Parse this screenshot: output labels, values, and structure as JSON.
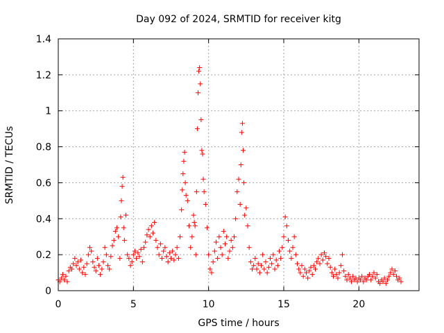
{
  "chart_data": {
    "type": "scatter",
    "title": "Day 092 of 2024, SRMTID for receiver kitg",
    "xlabel": "GPS time / hours",
    "ylabel": "SRMTID / TECUs",
    "xlim": [
      0,
      24
    ],
    "ylim": [
      0,
      1.4
    ],
    "x_ticks": [
      0,
      5,
      10,
      15,
      20
    ],
    "y_ticks": [
      0,
      0.2,
      0.4,
      0.6,
      0.8,
      1,
      1.2,
      1.4
    ],
    "y_tick_labels": [
      "0",
      "0.2",
      "0.4",
      "0.6",
      "0.8",
      "1",
      "1.2",
      "1.4"
    ],
    "grid": true,
    "marker": "+",
    "color": "#ff0000",
    "series": [
      {
        "name": "SRMTID",
        "points": [
          [
            0.0,
            0.06
          ],
          [
            0.1,
            0.05
          ],
          [
            0.2,
            0.07
          ],
          [
            0.3,
            0.09
          ],
          [
            0.4,
            0.06
          ],
          [
            0.5,
            0.08
          ],
          [
            0.6,
            0.05
          ],
          [
            0.7,
            0.11
          ],
          [
            0.8,
            0.13
          ],
          [
            0.9,
            0.12
          ],
          [
            1.0,
            0.15
          ],
          [
            1.1,
            0.18
          ],
          [
            1.2,
            0.14
          ],
          [
            1.3,
            0.16
          ],
          [
            1.4,
            0.12
          ],
          [
            1.5,
            0.17
          ],
          [
            1.6,
            0.1
          ],
          [
            1.7,
            0.13
          ],
          [
            1.8,
            0.09
          ],
          [
            1.9,
            0.15
          ],
          [
            2.0,
            0.2
          ],
          [
            2.1,
            0.24
          ],
          [
            2.2,
            0.22
          ],
          [
            2.3,
            0.16
          ],
          [
            2.4,
            0.13
          ],
          [
            2.5,
            0.11
          ],
          [
            2.6,
            0.18
          ],
          [
            2.7,
            0.14
          ],
          [
            2.8,
            0.09
          ],
          [
            2.9,
            0.12
          ],
          [
            3.0,
            0.16
          ],
          [
            3.1,
            0.24
          ],
          [
            3.2,
            0.2
          ],
          [
            3.3,
            0.14
          ],
          [
            3.4,
            0.12
          ],
          [
            3.5,
            0.19
          ],
          [
            3.6,
            0.25
          ],
          [
            3.7,
            0.28
          ],
          [
            3.8,
            0.33
          ],
          [
            3.9,
            0.35
          ],
          [
            4.0,
            0.3
          ],
          [
            4.1,
            0.18
          ],
          [
            4.15,
            0.41
          ],
          [
            4.2,
            0.5
          ],
          [
            4.25,
            0.58
          ],
          [
            4.3,
            0.63
          ],
          [
            4.35,
            0.35
          ],
          [
            4.4,
            0.28
          ],
          [
            4.5,
            0.42
          ],
          [
            4.6,
            0.2
          ],
          [
            4.7,
            0.18
          ],
          [
            4.8,
            0.14
          ],
          [
            4.9,
            0.16
          ],
          [
            5.0,
            0.2
          ],
          [
            5.1,
            0.22
          ],
          [
            5.2,
            0.18
          ],
          [
            5.3,
            0.21
          ],
          [
            5.4,
            0.19
          ],
          [
            5.5,
            0.23
          ],
          [
            5.6,
            0.16
          ],
          [
            5.7,
            0.24
          ],
          [
            5.8,
            0.27
          ],
          [
            5.9,
            0.31
          ],
          [
            6.0,
            0.34
          ],
          [
            6.1,
            0.3
          ],
          [
            6.2,
            0.36
          ],
          [
            6.3,
            0.32
          ],
          [
            6.4,
            0.38
          ],
          [
            6.5,
            0.28
          ],
          [
            6.6,
            0.24
          ],
          [
            6.7,
            0.2
          ],
          [
            6.8,
            0.26
          ],
          [
            6.9,
            0.18
          ],
          [
            7.0,
            0.22
          ],
          [
            7.1,
            0.24
          ],
          [
            7.2,
            0.19
          ],
          [
            7.3,
            0.16
          ],
          [
            7.4,
            0.21
          ],
          [
            7.5,
            0.18
          ],
          [
            7.6,
            0.22
          ],
          [
            7.7,
            0.17
          ],
          [
            7.8,
            0.2
          ],
          [
            7.9,
            0.24
          ],
          [
            8.0,
            0.18
          ],
          [
            8.1,
            0.3
          ],
          [
            8.2,
            0.45
          ],
          [
            8.25,
            0.56
          ],
          [
            8.3,
            0.65
          ],
          [
            8.35,
            0.72
          ],
          [
            8.4,
            0.77
          ],
          [
            8.45,
            0.6
          ],
          [
            8.5,
            0.53
          ],
          [
            8.6,
            0.5
          ],
          [
            8.7,
            0.36
          ],
          [
            8.8,
            0.24
          ],
          [
            8.9,
            0.3
          ],
          [
            9.0,
            0.42
          ],
          [
            9.05,
            0.38
          ],
          [
            9.1,
            0.36
          ],
          [
            9.15,
            0.2
          ],
          [
            9.2,
            0.55
          ],
          [
            9.25,
            0.9
          ],
          [
            9.3,
            1.1
          ],
          [
            9.35,
            1.22
          ],
          [
            9.4,
            1.24
          ],
          [
            9.45,
            1.15
          ],
          [
            9.5,
            0.95
          ],
          [
            9.55,
            0.78
          ],
          [
            9.6,
            0.76
          ],
          [
            9.65,
            0.62
          ],
          [
            9.7,
            0.55
          ],
          [
            9.8,
            0.48
          ],
          [
            9.9,
            0.35
          ],
          [
            10.0,
            0.2
          ],
          [
            10.1,
            0.12
          ],
          [
            10.2,
            0.1
          ],
          [
            10.3,
            0.16
          ],
          [
            10.4,
            0.22
          ],
          [
            10.5,
            0.27
          ],
          [
            10.6,
            0.18
          ],
          [
            10.7,
            0.3
          ],
          [
            10.8,
            0.24
          ],
          [
            10.9,
            0.2
          ],
          [
            11.0,
            0.33
          ],
          [
            11.1,
            0.26
          ],
          [
            11.2,
            0.3
          ],
          [
            11.3,
            0.18
          ],
          [
            11.4,
            0.22
          ],
          [
            11.5,
            0.28
          ],
          [
            11.6,
            0.24
          ],
          [
            11.7,
            0.3
          ],
          [
            11.8,
            0.4
          ],
          [
            11.9,
            0.55
          ],
          [
            12.0,
            0.62
          ],
          [
            12.1,
            0.48
          ],
          [
            12.15,
            0.7
          ],
          [
            12.2,
            0.88
          ],
          [
            12.25,
            0.93
          ],
          [
            12.3,
            0.78
          ],
          [
            12.35,
            0.6
          ],
          [
            12.4,
            0.42
          ],
          [
            12.5,
            0.46
          ],
          [
            12.6,
            0.36
          ],
          [
            12.7,
            0.24
          ],
          [
            12.8,
            0.16
          ],
          [
            12.9,
            0.12
          ],
          [
            13.0,
            0.14
          ],
          [
            13.1,
            0.18
          ],
          [
            13.2,
            0.12
          ],
          [
            13.3,
            0.15
          ],
          [
            13.4,
            0.1
          ],
          [
            13.5,
            0.14
          ],
          [
            13.6,
            0.2
          ],
          [
            13.7,
            0.12
          ],
          [
            13.8,
            0.16
          ],
          [
            13.9,
            0.1
          ],
          [
            14.0,
            0.13
          ],
          [
            14.1,
            0.18
          ],
          [
            14.2,
            0.15
          ],
          [
            14.3,
            0.2
          ],
          [
            14.4,
            0.12
          ],
          [
            14.5,
            0.17
          ],
          [
            14.6,
            0.14
          ],
          [
            14.7,
            0.22
          ],
          [
            14.8,
            0.18
          ],
          [
            14.9,
            0.24
          ],
          [
            15.0,
            0.3
          ],
          [
            15.1,
            0.41
          ],
          [
            15.2,
            0.36
          ],
          [
            15.3,
            0.28
          ],
          [
            15.4,
            0.22
          ],
          [
            15.5,
            0.18
          ],
          [
            15.6,
            0.24
          ],
          [
            15.7,
            0.3
          ],
          [
            15.8,
            0.2
          ],
          [
            15.9,
            0.15
          ],
          [
            16.0,
            0.12
          ],
          [
            16.1,
            0.1
          ],
          [
            16.2,
            0.14
          ],
          [
            16.3,
            0.08
          ],
          [
            16.4,
            0.12
          ],
          [
            16.5,
            0.1
          ],
          [
            16.6,
            0.07
          ],
          [
            16.7,
            0.11
          ],
          [
            16.8,
            0.13
          ],
          [
            16.9,
            0.09
          ],
          [
            17.0,
            0.14
          ],
          [
            17.1,
            0.12
          ],
          [
            17.2,
            0.16
          ],
          [
            17.3,
            0.18
          ],
          [
            17.4,
            0.15
          ],
          [
            17.5,
            0.2
          ],
          [
            17.6,
            0.17
          ],
          [
            17.7,
            0.21
          ],
          [
            17.8,
            0.19
          ],
          [
            17.9,
            0.15
          ],
          [
            18.0,
            0.18
          ],
          [
            18.1,
            0.13
          ],
          [
            18.2,
            0.1
          ],
          [
            18.3,
            0.08
          ],
          [
            18.4,
            0.12
          ],
          [
            18.5,
            0.09
          ],
          [
            18.6,
            0.07
          ],
          [
            18.7,
            0.1
          ],
          [
            18.8,
            0.14
          ],
          [
            18.9,
            0.2
          ],
          [
            19.0,
            0.11
          ],
          [
            19.1,
            0.08
          ],
          [
            19.2,
            0.06
          ],
          [
            19.3,
            0.09
          ],
          [
            19.4,
            0.07
          ],
          [
            19.5,
            0.05
          ],
          [
            19.6,
            0.08
          ],
          [
            19.7,
            0.06
          ],
          [
            19.8,
            0.07
          ],
          [
            19.9,
            0.05
          ],
          [
            20.0,
            0.07
          ],
          [
            20.1,
            0.06
          ],
          [
            20.2,
            0.08
          ],
          [
            20.3,
            0.05
          ],
          [
            20.4,
            0.07
          ],
          [
            20.5,
            0.06
          ],
          [
            20.6,
            0.08
          ],
          [
            20.7,
            0.09
          ],
          [
            20.8,
            0.06
          ],
          [
            20.9,
            0.08
          ],
          [
            21.0,
            0.1
          ],
          [
            21.1,
            0.07
          ],
          [
            21.2,
            0.09
          ],
          [
            21.3,
            0.05
          ],
          [
            21.4,
            0.04
          ],
          [
            21.5,
            0.06
          ],
          [
            21.6,
            0.05
          ],
          [
            21.7,
            0.07
          ],
          [
            21.8,
            0.04
          ],
          [
            21.9,
            0.06
          ],
          [
            22.0,
            0.08
          ],
          [
            22.1,
            0.1
          ],
          [
            22.2,
            0.12
          ],
          [
            22.3,
            0.09
          ],
          [
            22.4,
            0.11
          ],
          [
            22.5,
            0.08
          ],
          [
            22.6,
            0.06
          ],
          [
            22.7,
            0.07
          ],
          [
            22.8,
            0.05
          ]
        ]
      }
    ]
  }
}
